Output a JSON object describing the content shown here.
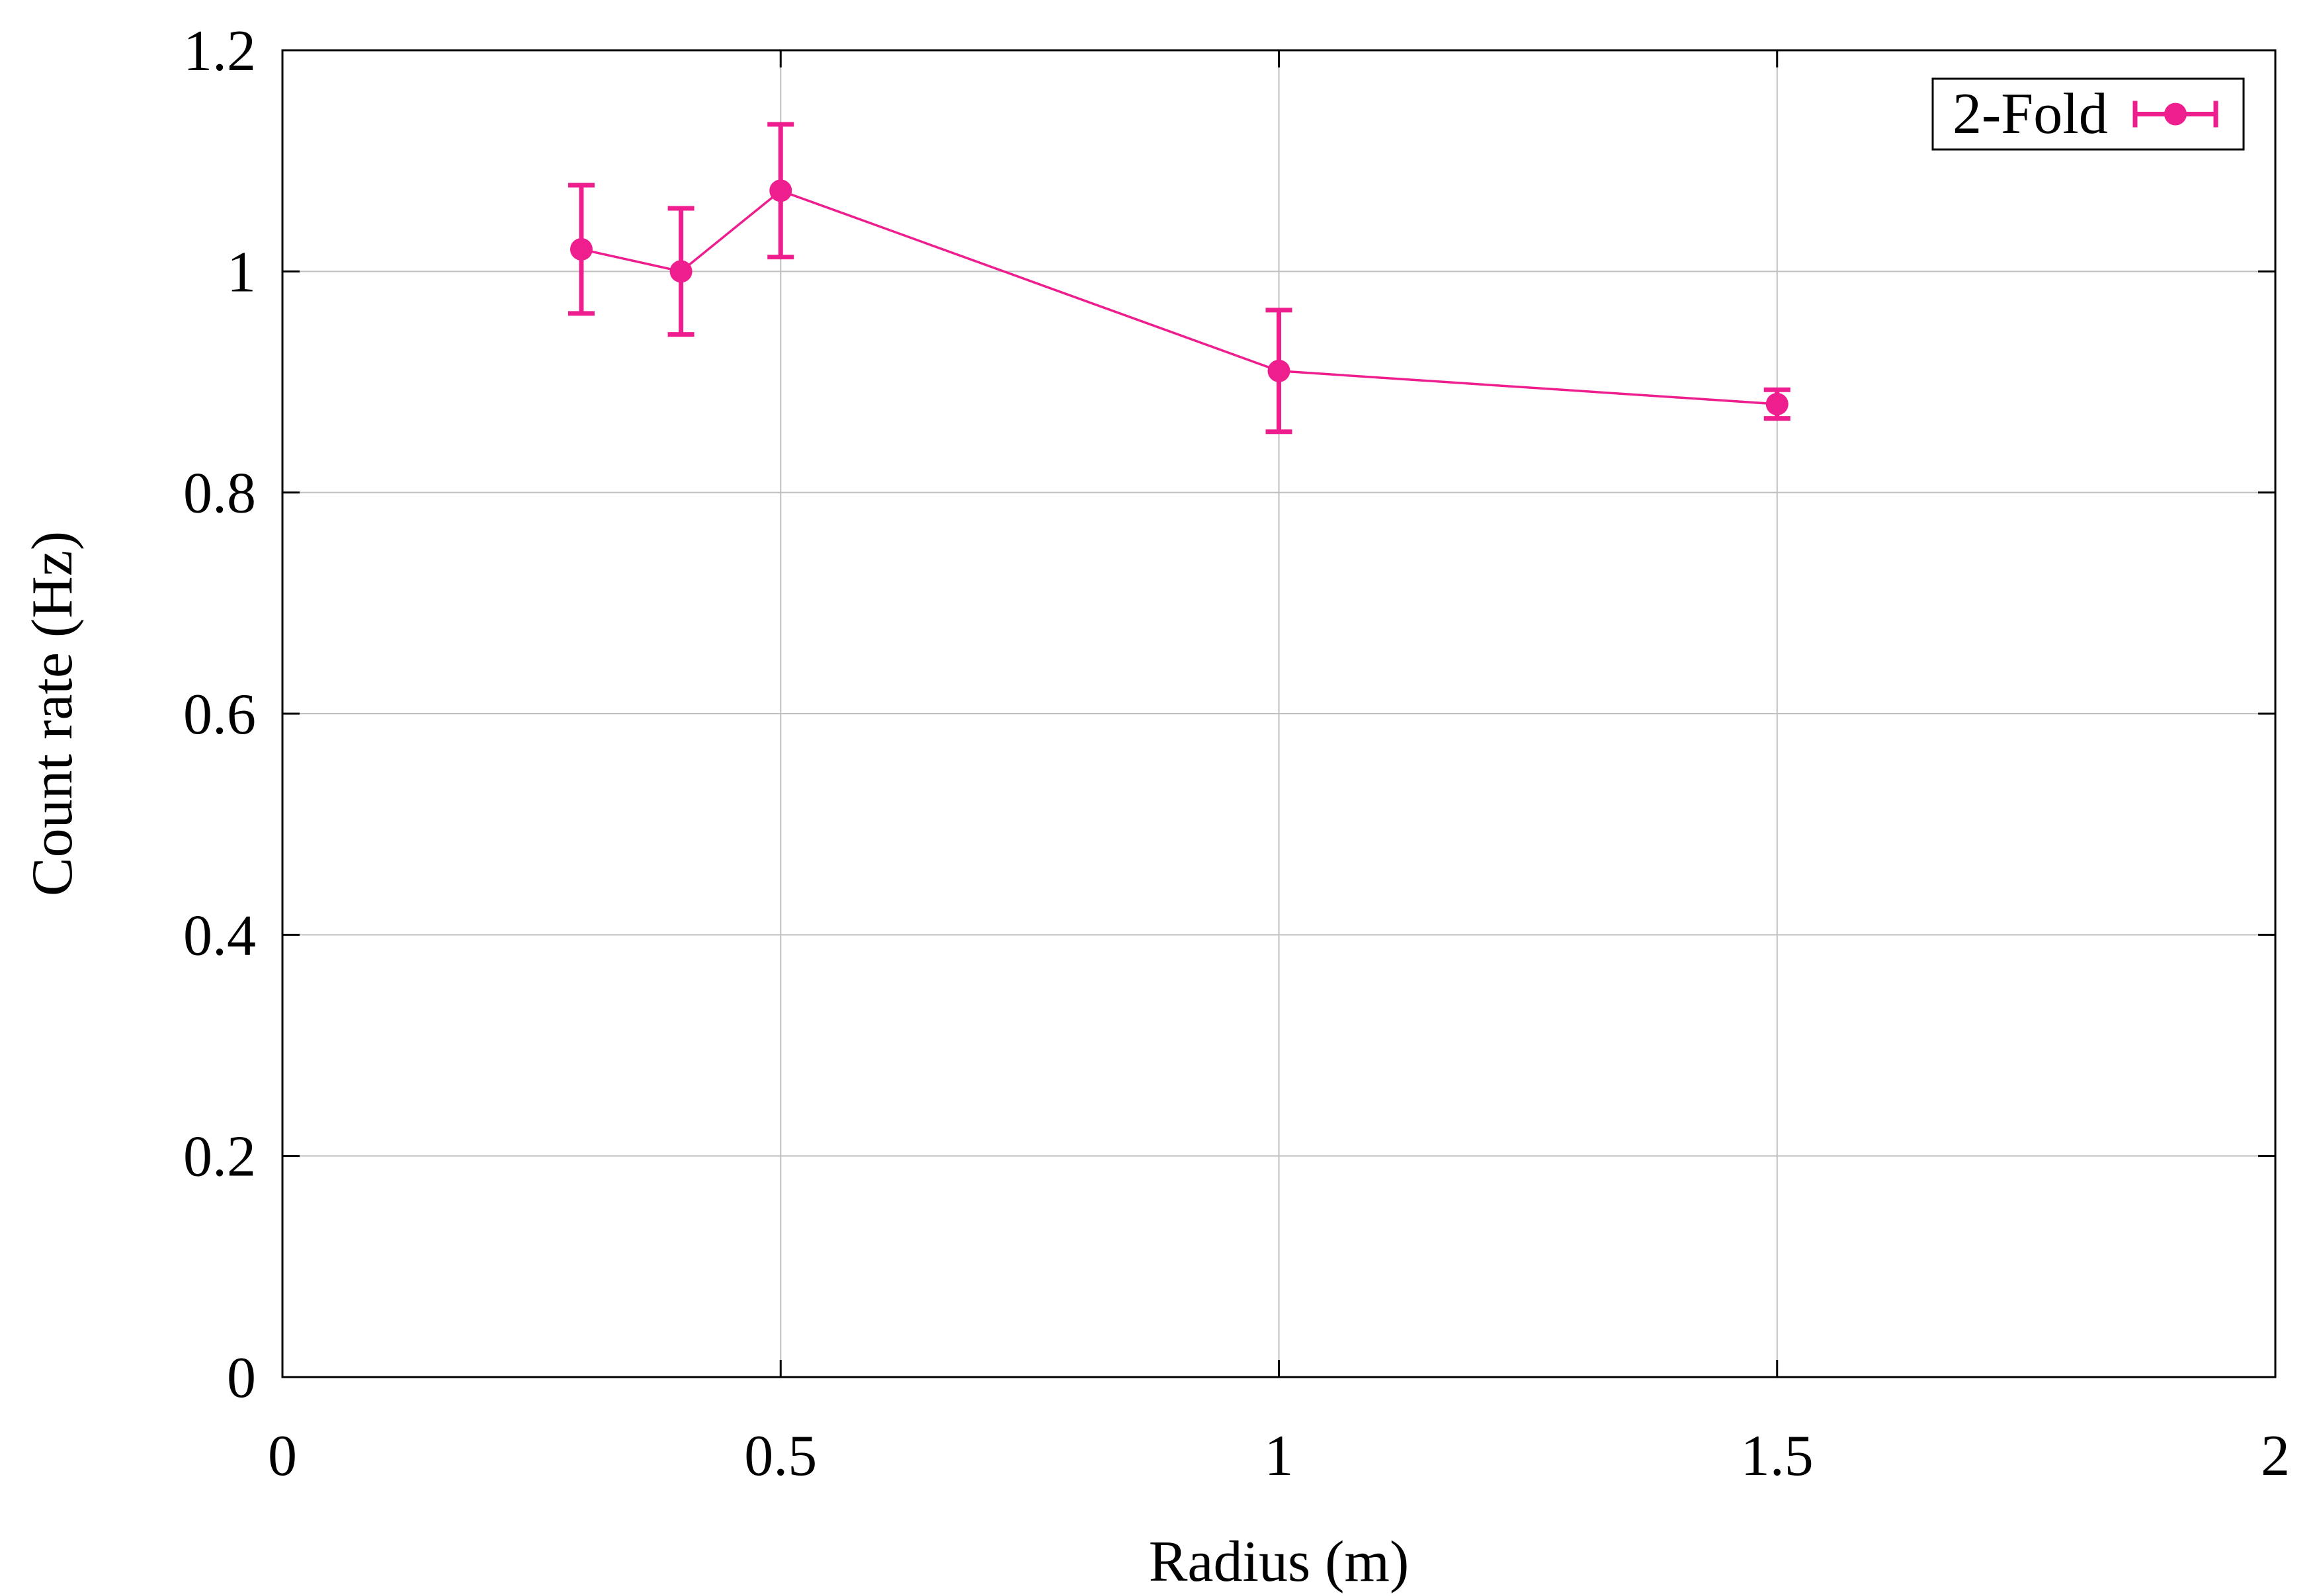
{
  "chart_data": {
    "type": "line",
    "xlabel": "Radius (m)",
    "ylabel": "Count rate (Hz)",
    "xlim": [
      0,
      2
    ],
    "ylim": [
      0,
      1.2
    ],
    "xticks": [
      0,
      0.5,
      1,
      1.5,
      2
    ],
    "xtick_labels": [
      "0",
      "0.5",
      "1",
      "1.5",
      "2"
    ],
    "yticks": [
      0,
      0.2,
      0.4,
      0.6,
      0.8,
      1,
      1.2
    ],
    "ytick_labels": [
      "0",
      "0.2",
      "0.4",
      "0.6",
      "0.8",
      "1",
      "1.2"
    ],
    "grid": true,
    "legend_position": "top-right",
    "series": [
      {
        "name": "2-Fold",
        "color": "#ee1e8f",
        "marker": "circle",
        "error_bars": true,
        "x": [
          0.3,
          0.4,
          0.5,
          1.0,
          1.5
        ],
        "y": [
          1.02,
          1.0,
          1.073,
          0.91,
          0.88
        ],
        "yerr": [
          0.058,
          0.057,
          0.06,
          0.055,
          0.013
        ]
      }
    ]
  }
}
